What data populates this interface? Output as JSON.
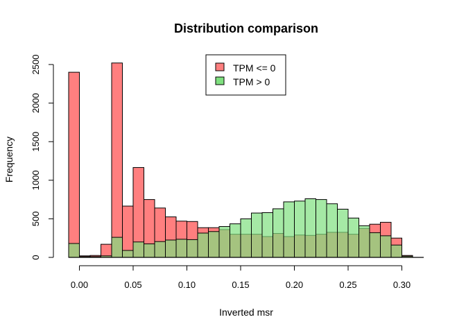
{
  "chart_data": {
    "type": "histogram",
    "title": "Distribution comparison",
    "xlabel": "Inverted msr",
    "ylabel": "Frequency",
    "xlim": [
      -0.01,
      0.31
    ],
    "ylim": [
      0,
      2500
    ],
    "bin_width": 0.01,
    "bin_starts": [
      -0.01,
      0.0,
      0.01,
      0.02,
      0.03,
      0.04,
      0.05,
      0.06,
      0.07,
      0.08,
      0.09,
      0.1,
      0.11,
      0.12,
      0.13,
      0.14,
      0.15,
      0.16,
      0.17,
      0.18,
      0.19,
      0.2,
      0.21,
      0.22,
      0.23,
      0.24,
      0.25,
      0.26,
      0.27,
      0.28,
      0.29,
      0.3
    ],
    "x_ticks": [
      0.0,
      0.05,
      0.1,
      0.15,
      0.2,
      0.25,
      0.3
    ],
    "x_tick_labels": [
      "0.00",
      "0.05",
      "0.10",
      "0.15",
      "0.20",
      "0.25",
      "0.30"
    ],
    "y_ticks": [
      0,
      500,
      1000,
      1500,
      2000,
      2500
    ],
    "y_tick_labels": [
      "0",
      "500",
      "1000",
      "1500",
      "2000",
      "2500"
    ],
    "legend_position": "top-center",
    "series": [
      {
        "name": "TPM <= 0",
        "color": "#FF7F7F",
        "values": [
          2400,
          20,
          25,
          170,
          2520,
          665,
          1165,
          750,
          640,
          525,
          470,
          465,
          385,
          385,
          360,
          300,
          300,
          300,
          270,
          310,
          270,
          290,
          285,
          300,
          325,
          325,
          300,
          375,
          430,
          455,
          250,
          25
        ]
      },
      {
        "name": "TPM > 0",
        "color": "#7FE07F",
        "values": [
          180,
          10,
          10,
          20,
          260,
          90,
          200,
          175,
          205,
          225,
          235,
          230,
          315,
          335,
          400,
          435,
          500,
          575,
          580,
          630,
          720,
          730,
          760,
          750,
          695,
          625,
          510,
          410,
          320,
          280,
          160,
          15
        ]
      }
    ]
  }
}
